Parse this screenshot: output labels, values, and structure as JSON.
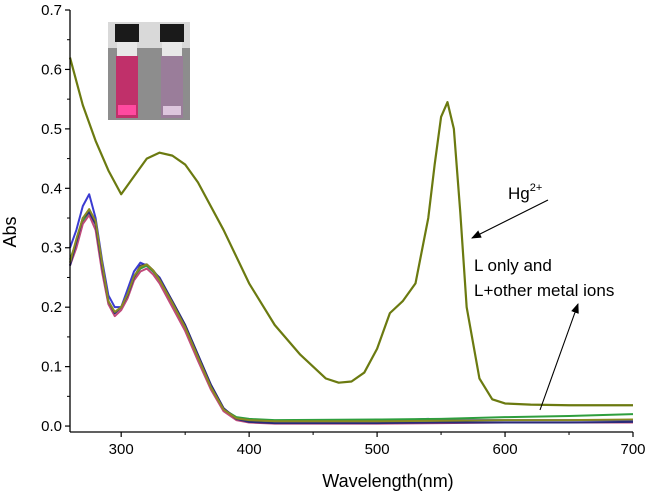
{
  "chart_data": {
    "type": "line",
    "xlabel": "Wavelength(nm)",
    "ylabel": "Abs",
    "xlim": [
      260,
      700
    ],
    "ylim": [
      -0.01,
      0.7
    ],
    "xticks": [
      300,
      400,
      500,
      600,
      700
    ],
    "yticks": [
      0.0,
      0.1,
      0.2,
      0.3,
      0.4,
      0.5,
      0.6,
      0.7
    ],
    "annotations": {
      "hg_base": "Hg",
      "hg_sup": "2+",
      "l_line1": "L only and",
      "l_line2": "L+other metal ions"
    },
    "inset": {
      "description_icon": "vial-photo-icon",
      "left_vial_color": "#c0306a",
      "right_vial_color": "#9a7d9a"
    },
    "series": [
      {
        "color": "#6b7a10",
        "x": [
          260,
          270,
          280,
          290,
          300,
          310,
          320,
          330,
          340,
          350,
          360,
          380,
          400,
          420,
          440,
          460,
          470,
          480,
          490,
          500,
          510,
          520,
          530,
          540,
          545,
          550,
          555,
          560,
          565,
          570,
          580,
          590,
          600,
          620,
          650,
          700
        ],
        "values": [
          0.62,
          0.54,
          0.48,
          0.43,
          0.39,
          0.42,
          0.45,
          0.46,
          0.455,
          0.44,
          0.41,
          0.33,
          0.24,
          0.17,
          0.12,
          0.08,
          0.073,
          0.075,
          0.09,
          0.13,
          0.19,
          0.21,
          0.24,
          0.35,
          0.44,
          0.52,
          0.545,
          0.5,
          0.36,
          0.2,
          0.08,
          0.045,
          0.038,
          0.036,
          0.035,
          0.035
        ]
      },
      {
        "color": "#3b3bd1",
        "x": [
          260,
          265,
          270,
          275,
          280,
          285,
          290,
          295,
          300,
          305,
          310,
          315,
          320,
          325,
          330,
          340,
          350,
          360,
          370,
          380,
          390,
          400,
          420,
          500,
          540,
          550,
          560,
          600,
          650,
          700
        ],
        "values": [
          0.3,
          0.33,
          0.37,
          0.39,
          0.35,
          0.28,
          0.22,
          0.2,
          0.2,
          0.23,
          0.26,
          0.275,
          0.27,
          0.26,
          0.25,
          0.21,
          0.17,
          0.12,
          0.07,
          0.03,
          0.012,
          0.01,
          0.008,
          0.008,
          0.012,
          0.01,
          0.01,
          0.01,
          0.01,
          0.01
        ]
      },
      {
        "color": "#2e9e3e",
        "x": [
          260,
          265,
          270,
          275,
          280,
          285,
          290,
          295,
          300,
          305,
          310,
          315,
          320,
          325,
          330,
          340,
          350,
          360,
          370,
          380,
          390,
          400,
          420,
          500,
          550,
          600,
          650,
          700
        ],
        "values": [
          0.28,
          0.31,
          0.345,
          0.36,
          0.34,
          0.27,
          0.21,
          0.19,
          0.2,
          0.22,
          0.25,
          0.265,
          0.27,
          0.26,
          0.245,
          0.205,
          0.165,
          0.115,
          0.065,
          0.028,
          0.015,
          0.012,
          0.01,
          0.011,
          0.012,
          0.015,
          0.017,
          0.02
        ]
      },
      {
        "color": "#c04a7a",
        "x": [
          260,
          265,
          270,
          275,
          280,
          285,
          290,
          295,
          300,
          305,
          310,
          315,
          320,
          325,
          330,
          340,
          350,
          360,
          370,
          380,
          390,
          400,
          420,
          500,
          550,
          600,
          650,
          700
        ],
        "values": [
          0.27,
          0.3,
          0.34,
          0.355,
          0.33,
          0.26,
          0.205,
          0.185,
          0.195,
          0.215,
          0.245,
          0.26,
          0.265,
          0.255,
          0.24,
          0.2,
          0.16,
          0.11,
          0.062,
          0.025,
          0.01,
          0.006,
          0.004,
          0.004,
          0.005,
          0.006,
          0.006,
          0.006
        ]
      },
      {
        "color": "#2a2a7a",
        "x": [
          260,
          265,
          270,
          275,
          280,
          285,
          290,
          295,
          300,
          305,
          310,
          315,
          320,
          325,
          330,
          340,
          350,
          360,
          370,
          380,
          390,
          400,
          420,
          500,
          550,
          600,
          650,
          700
        ],
        "values": [
          0.27,
          0.31,
          0.35,
          0.36,
          0.34,
          0.27,
          0.21,
          0.19,
          0.2,
          0.22,
          0.25,
          0.27,
          0.272,
          0.262,
          0.248,
          0.21,
          0.17,
          0.12,
          0.07,
          0.03,
          0.012,
          0.007,
          0.005,
          0.005,
          0.006,
          0.006,
          0.006,
          0.007
        ]
      },
      {
        "color": "#8a8a20",
        "x": [
          260,
          265,
          270,
          275,
          280,
          285,
          290,
          295,
          300,
          305,
          310,
          315,
          320,
          325,
          330,
          340,
          350,
          360,
          370,
          380,
          390,
          400,
          420,
          500,
          550,
          600,
          650,
          700
        ],
        "values": [
          0.275,
          0.315,
          0.35,
          0.365,
          0.345,
          0.275,
          0.21,
          0.192,
          0.2,
          0.222,
          0.252,
          0.268,
          0.272,
          0.262,
          0.246,
          0.207,
          0.166,
          0.116,
          0.066,
          0.028,
          0.013,
          0.01,
          0.008,
          0.008,
          0.009,
          0.01,
          0.01,
          0.011
        ]
      }
    ]
  }
}
